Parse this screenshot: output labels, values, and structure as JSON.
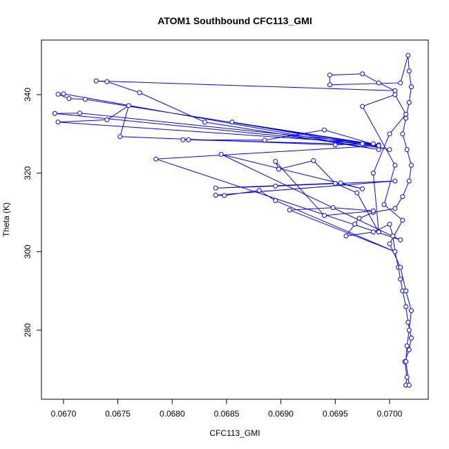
{
  "chart_data": {
    "type": "scatter",
    "title": "ATOM1 Southbound CFC113_GMI",
    "x_label": "CFC113_GMI",
    "y_label": "Theta (K)",
    "color": "#0000ff",
    "x": [
      0.07015,
      0.07016,
      0.07014,
      0.07018,
      0.0702,
      0.07017,
      0.07015,
      0.07012,
      0.0701,
      0.07008,
      0.07005,
      0.07003,
      0.07,
      0.06985,
      0.0696,
      0.06968,
      0.06972,
      0.06985,
      0.07005,
      0.07012,
      0.07018,
      0.0702,
      0.07016,
      0.07012,
      0.07015,
      0.07018,
      0.0702,
      0.07018,
      0.07017,
      0.0701,
      0.06945,
      0.06945,
      0.06975,
      0.0699,
      0.07005,
      0.0673,
      0.0674,
      0.0677,
      0.0683,
      0.0699,
      0.067,
      0.06695,
      0.06705,
      0.0672,
      0.0699,
      0.06692,
      0.06715,
      0.06985,
      0.06695,
      0.0674,
      0.0676,
      0.06752,
      0.0695,
      0.06975,
      0.07,
      0.06855,
      0.0699,
      0.06815,
      0.0681,
      0.06885,
      0.0694,
      0.0699,
      0.06785,
      0.0701,
      0.06845,
      0.06975,
      0.06955,
      0.0684,
      0.06895,
      0.07005,
      0.0684,
      0.06848,
      0.0688,
      0.06895,
      0.07005,
      0.06908,
      0.06948,
      0.06985,
      0.0694,
      0.06895,
      0.06898,
      0.0693,
      0.0695,
      0.0697,
      0.0699,
      0.06985,
      0.07,
      0.07015,
      0.07005,
      0.06975,
      0.07005,
      0.06995,
      0.07012,
      0.07,
      0.0701,
      0.07015,
      0.0702,
      0.07018,
      0.07016,
      0.07015,
      0.07018
    ],
    "values": [
      266,
      268,
      272,
      275,
      278,
      282,
      286,
      290,
      293,
      296,
      300,
      304,
      307,
      305,
      304,
      307,
      308.5,
      310,
      311,
      314,
      318,
      322,
      326,
      330,
      334,
      338,
      342,
      346,
      350,
      343,
      342.5,
      345,
      345.3,
      343,
      341,
      343.5,
      343.3,
      340.5,
      333,
      326,
      340.2,
      340.1,
      339,
      338.8,
      327,
      335.2,
      335.3,
      327.5,
      333,
      333.6,
      337.2,
      329.3,
      327.2,
      327.5,
      326,
      333,
      327.2,
      328.5,
      328.5,
      328.4,
      331,
      327,
      323.6,
      303,
      324.8,
      316,
      317.5,
      316.2,
      316.7,
      318,
      314.4,
      314.3,
      315.6,
      313,
      300,
      310.6,
      311.2,
      310.4,
      309.2,
      323,
      321,
      323.2,
      317.4,
      315,
      305,
      320,
      330,
      335,
      340,
      337,
      322,
      312,
      308,
      302,
      296,
      290,
      285,
      280,
      276,
      272,
      266
    ],
    "xlim": [
      0.066797,
      0.070356
    ],
    "ylim": [
      262.4,
      353.9
    ],
    "xticks": [
      {
        "value": 0.067,
        "label": "0.0670"
      },
      {
        "value": 0.0675,
        "label": "0.0675"
      },
      {
        "value": 0.068,
        "label": "0.0680"
      },
      {
        "value": 0.0685,
        "label": "0.0685"
      },
      {
        "value": 0.069,
        "label": "0.0690"
      },
      {
        "value": 0.0695,
        "label": "0.0695"
      },
      {
        "value": 0.07,
        "label": "0.0700"
      }
    ],
    "yticks": [
      280,
      300,
      320,
      340
    ]
  }
}
